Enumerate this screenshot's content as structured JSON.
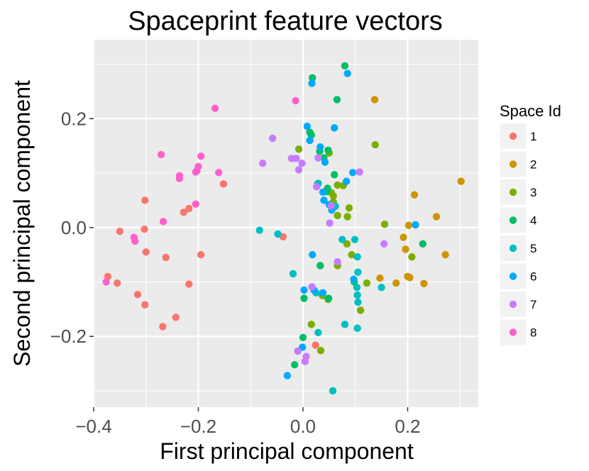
{
  "chart_data": {
    "type": "scatter",
    "title": "Spaceprint feature vectors",
    "xlabel": "First principal component",
    "ylabel": "Second principal component",
    "xlim": [
      -0.4,
      0.335
    ],
    "ylim": [
      -0.33,
      0.345
    ],
    "x_ticks": [
      -0.4,
      -0.2,
      0.0,
      0.2
    ],
    "x_tick_labels": [
      "−0.4",
      "−0.2",
      "0.0",
      "0.2"
    ],
    "y_ticks": [
      -0.2,
      0.0,
      0.2
    ],
    "y_tick_labels": [
      "−0.2",
      "0.0",
      "0.2"
    ],
    "grid": true,
    "legend": {
      "title": "Space Id",
      "placement": "right"
    },
    "series": [
      {
        "name": "1",
        "color": "#F8766D",
        "points": [
          [
            -0.302,
            0.05
          ],
          [
            -0.218,
            0.035
          ],
          [
            -0.228,
            0.028
          ],
          [
            -0.152,
            0.08
          ],
          [
            -0.35,
            -0.007
          ],
          [
            -0.303,
            -0.003
          ],
          [
            -0.3,
            -0.045
          ],
          [
            -0.262,
            -0.055
          ],
          [
            -0.195,
            -0.05
          ],
          [
            -0.038,
            -0.017
          ],
          [
            -0.373,
            -0.09
          ],
          [
            -0.355,
            -0.102
          ],
          [
            -0.218,
            -0.104
          ],
          [
            -0.316,
            -0.123
          ],
          [
            -0.302,
            -0.142
          ],
          [
            -0.243,
            -0.165
          ],
          [
            -0.268,
            -0.182
          ],
          [
            0.024,
            -0.216
          ]
        ]
      },
      {
        "name": "2",
        "color": "#CD9600",
        "points": [
          [
            0.137,
            0.235
          ],
          [
            0.302,
            0.085
          ],
          [
            0.213,
            0.06
          ],
          [
            0.255,
            0.02
          ],
          [
            0.202,
            0.004
          ],
          [
            0.192,
            -0.018
          ],
          [
            0.196,
            -0.04
          ],
          [
            0.272,
            -0.05
          ],
          [
            0.147,
            -0.093
          ],
          [
            0.2,
            -0.09
          ],
          [
            0.204,
            -0.092
          ],
          [
            0.178,
            -0.102
          ],
          [
            0.231,
            -0.103
          ]
        ]
      },
      {
        "name": "3",
        "color": "#7CAE00",
        "points": [
          [
            -0.008,
            0.144
          ],
          [
            0.05,
            0.137
          ],
          [
            0.138,
            0.152
          ],
          [
            0.058,
            0.058
          ],
          [
            0.058,
            0.047
          ],
          [
            0.066,
            0.078
          ],
          [
            0.054,
            0.064
          ],
          [
            0.077,
            0.077
          ],
          [
            0.088,
            0.036
          ],
          [
            0.066,
            0.022
          ],
          [
            0.085,
            0.02
          ],
          [
            0.156,
            0.006
          ],
          [
            0.084,
            -0.03
          ],
          [
            0.093,
            -0.05
          ],
          [
            0.066,
            -0.07
          ],
          [
            0.122,
            -0.102
          ],
          [
            0.208,
            -0.054
          ],
          [
            0.033,
            -0.07
          ],
          [
            0.037,
            -0.125
          ],
          [
            0.048,
            -0.132
          ],
          [
            0.016,
            -0.178
          ],
          [
            0.034,
            -0.226
          ],
          [
            0.11,
            -0.152
          ]
        ]
      },
      {
        "name": "4",
        "color": "#00BE67",
        "points": [
          [
            0.08,
            0.297
          ],
          [
            0.018,
            0.275
          ],
          [
            0.065,
            0.235
          ],
          [
            0.013,
            0.175
          ],
          [
            0.016,
            0.17
          ],
          [
            0.048,
            0.142
          ],
          [
            0.032,
            0.14
          ],
          [
            0.04,
            0.128
          ],
          [
            0.06,
            0.097
          ],
          [
            0.047,
            0.072
          ],
          [
            0.045,
            0.066
          ],
          [
            0.029,
            0.081
          ],
          [
            0.098,
            -0.1
          ],
          [
            0.229,
            -0.03
          ],
          [
            0.033,
            -0.07
          ],
          [
            0.002,
            -0.13
          ],
          [
            0.0,
            -0.202
          ],
          [
            0.049,
            -0.13
          ],
          [
            -0.016,
            -0.252
          ]
        ]
      },
      {
        "name": "5",
        "color": "#00BFC4",
        "points": [
          [
            0.028,
            0.08
          ],
          [
            0.062,
            0.039
          ],
          [
            -0.083,
            -0.005
          ],
          [
            -0.048,
            -0.012
          ],
          [
            0.075,
            -0.022
          ],
          [
            0.099,
            -0.022
          ],
          [
            0.104,
            -0.054
          ],
          [
            -0.019,
            -0.085
          ],
          [
            0.105,
            -0.082
          ],
          [
            0.103,
            -0.11
          ],
          [
            0.15,
            -0.11
          ],
          [
            0.104,
            -0.124
          ],
          [
            0.025,
            -0.12
          ],
          [
            0.105,
            -0.137
          ],
          [
            0.08,
            -0.178
          ],
          [
            0.104,
            -0.185
          ],
          [
            0.029,
            -0.193
          ],
          [
            0.057,
            -0.3
          ]
        ]
      },
      {
        "name": "6",
        "color": "#00A9FF",
        "points": [
          [
            0.085,
            0.283
          ],
          [
            0.017,
            0.265
          ],
          [
            0.06,
            0.183
          ],
          [
            0.008,
            0.186
          ],
          [
            0.013,
            0.16
          ],
          [
            0.033,
            0.148
          ],
          [
            0.042,
            0.12
          ],
          [
            0.095,
            0.101
          ],
          [
            0.083,
            0.085
          ],
          [
            0.038,
            0.065
          ],
          [
            0.04,
            0.05
          ],
          [
            0.05,
            0.042
          ],
          [
            0.055,
            0.032
          ],
          [
            0.215,
            0.005
          ],
          [
            0.018,
            -0.05
          ],
          [
            0.097,
            -0.095
          ],
          [
            0.002,
            -0.115
          ],
          [
            0.021,
            -0.115
          ],
          [
            0.038,
            -0.12
          ],
          [
            -0.001,
            -0.22
          ],
          [
            -0.03,
            -0.272
          ]
        ]
      },
      {
        "name": "7",
        "color": "#C77CFF",
        "points": [
          [
            -0.058,
            0.164
          ],
          [
            -0.077,
            0.118
          ],
          [
            -0.022,
            0.127
          ],
          [
            -0.013,
            0.127
          ],
          [
            -0.002,
            0.118
          ],
          [
            0.029,
            0.128
          ],
          [
            0.108,
            0.102
          ],
          [
            -0.008,
            0.106
          ],
          [
            0.026,
            0.075
          ],
          [
            0.054,
            0.04
          ],
          [
            0.051,
            0.008
          ],
          [
            0.155,
            -0.03
          ],
          [
            0.066,
            -0.063
          ],
          [
            0.017,
            -0.109
          ],
          [
            -0.01,
            -0.227
          ],
          [
            0.006,
            -0.237
          ],
          [
            0.004,
            -0.246
          ]
        ]
      },
      {
        "name": "8",
        "color": "#FF61CC",
        "points": [
          [
            -0.168,
            0.219
          ],
          [
            -0.014,
            0.233
          ],
          [
            -0.271,
            0.134
          ],
          [
            -0.195,
            0.131
          ],
          [
            -0.2,
            0.112
          ],
          [
            -0.203,
            0.104
          ],
          [
            -0.205,
            0.102
          ],
          [
            -0.161,
            0.101
          ],
          [
            -0.236,
            0.095
          ],
          [
            -0.236,
            0.09
          ],
          [
            -0.205,
            0.043
          ],
          [
            -0.267,
            0.011
          ],
          [
            -0.323,
            -0.018
          ],
          [
            -0.321,
            -0.025
          ],
          [
            -0.376,
            -0.1
          ]
        ]
      }
    ]
  }
}
